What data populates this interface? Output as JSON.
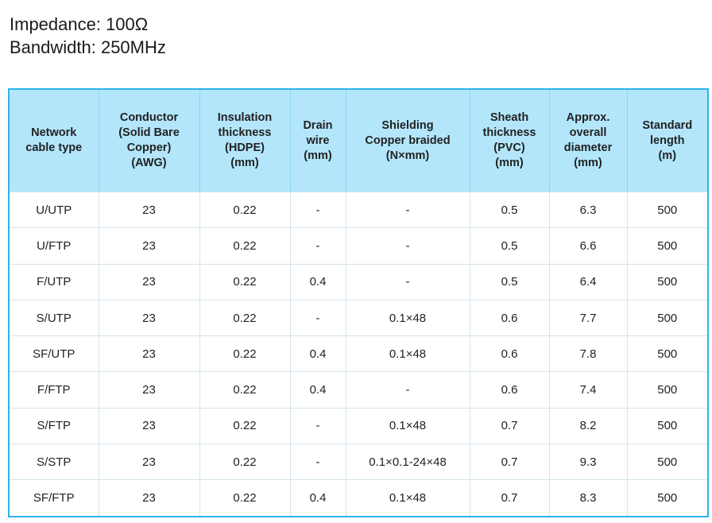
{
  "header": {
    "lines": [
      "Impedance: 100Ω",
      "Bandwidth: 250MHz"
    ]
  },
  "table": {
    "columns": [
      [
        "Network",
        "cable type"
      ],
      [
        "Conductor",
        "(Solid Bare",
        "Copper)",
        "(AWG)"
      ],
      [
        "Insulation",
        "thickness",
        "(HDPE)",
        "(mm)"
      ],
      [
        "Drain",
        "wire",
        "(mm)"
      ],
      [
        "Shielding",
        "Copper braided",
        "(N×mm)"
      ],
      [
        "Sheath",
        "thickness",
        "(PVC)",
        "(mm)"
      ],
      [
        "Approx.",
        "overall",
        "diameter",
        "(mm)"
      ],
      [
        "Standard",
        "length",
        "(m)"
      ]
    ],
    "rows": [
      [
        "U/UTP",
        "23",
        "0.22",
        "-",
        "-",
        "0.5",
        "6.3",
        "500"
      ],
      [
        "U/FTP",
        "23",
        "0.22",
        "-",
        "-",
        "0.5",
        "6.6",
        "500"
      ],
      [
        "F/UTP",
        "23",
        "0.22",
        "0.4",
        "-",
        "0.5",
        "6.4",
        "500"
      ],
      [
        "S/UTP",
        "23",
        "0.22",
        "-",
        "0.1×48",
        "0.6",
        "7.7",
        "500"
      ],
      [
        "SF/UTP",
        "23",
        "0.22",
        "0.4",
        "0.1×48",
        "0.6",
        "7.8",
        "500"
      ],
      [
        "F/FTP",
        "23",
        "0.22",
        "0.4",
        "-",
        "0.6",
        "7.4",
        "500"
      ],
      [
        "S/FTP",
        "23",
        "0.22",
        "-",
        "0.1×48",
        "0.7",
        "8.2",
        "500"
      ],
      [
        "S/STP",
        "23",
        "0.22",
        "-",
        "0.1×0.1-24×48",
        "0.7",
        "9.3",
        "500"
      ],
      [
        "SF/FTP",
        "23",
        "0.22",
        "0.4",
        "0.1×48",
        "0.7",
        "8.3",
        "500"
      ]
    ]
  }
}
